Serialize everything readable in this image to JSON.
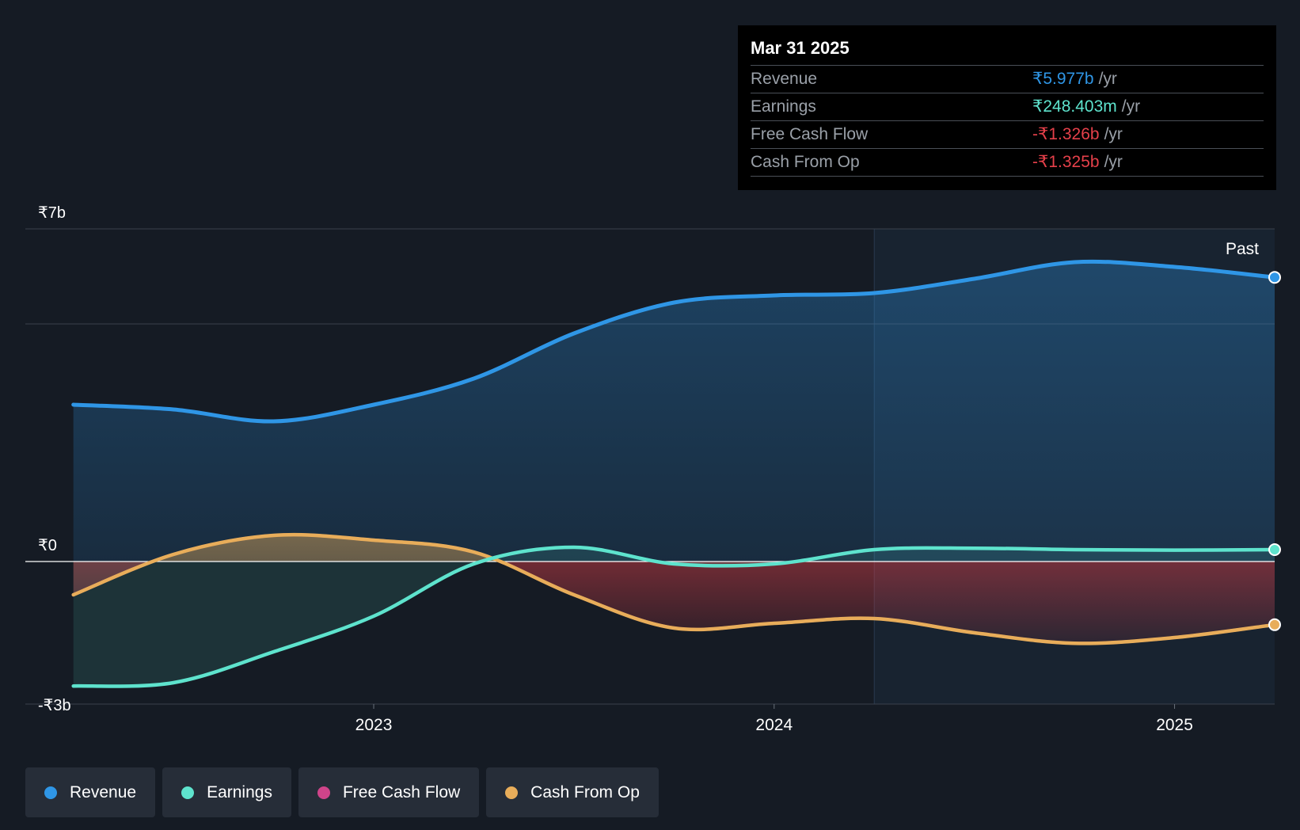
{
  "colors": {
    "revenue": "#2f96e6",
    "earnings": "#5ee3cd",
    "free_cash_flow": "#d0448a",
    "cash_from_op": "#e8ad5a",
    "negative_value": "#e5404a"
  },
  "tooltip": {
    "date": "Mar 31 2025",
    "rows": [
      {
        "label": "Revenue",
        "value": "₹5.977b",
        "unit": "/yr",
        "color": "#2f96e6"
      },
      {
        "label": "Earnings",
        "value": "₹248.403m",
        "unit": "/yr",
        "color": "#5ee3cd"
      },
      {
        "label": "Free Cash Flow",
        "value": "-₹1.326b",
        "unit": "/yr",
        "color": "#e5404a"
      },
      {
        "label": "Cash From Op",
        "value": "-₹1.325b",
        "unit": "/yr",
        "color": "#e5404a"
      }
    ]
  },
  "legend": [
    {
      "label": "Revenue",
      "color": "#2f96e6"
    },
    {
      "label": "Earnings",
      "color": "#5ee3cd"
    },
    {
      "label": "Free Cash Flow",
      "color": "#d0448a"
    },
    {
      "label": "Cash From Op",
      "color": "#e8ad5a"
    }
  ],
  "chart_data": {
    "type": "line",
    "title": "",
    "xlabel": "",
    "ylabel": "",
    "ylim": [
      -3,
      7
    ],
    "y_tick_labels": [
      {
        "value": 7,
        "label": "₹7b"
      },
      {
        "value": 0,
        "label": "₹0"
      },
      {
        "value": -3,
        "label": "-₹3b"
      }
    ],
    "x_ticks": [
      {
        "value": 2023.0,
        "label": "2023"
      },
      {
        "value": 2024.0,
        "label": "2024"
      },
      {
        "value": 2025.0,
        "label": "2025"
      }
    ],
    "xlim": [
      2022.13,
      2025.25
    ],
    "past_start": 2024.25,
    "past_label": "Past",
    "units": "₹ billions",
    "series": [
      {
        "name": "Revenue",
        "key": "revenue",
        "x": [
          2022.25,
          2022.5,
          2022.75,
          2023.0,
          2023.25,
          2023.5,
          2023.75,
          2024.0,
          2024.25,
          2024.5,
          2024.75,
          2025.0,
          2025.25
        ],
        "values": [
          3.3,
          3.2,
          2.95,
          3.3,
          3.85,
          4.8,
          5.45,
          5.6,
          5.65,
          5.95,
          6.3,
          6.2,
          5.98
        ]
      },
      {
        "name": "Earnings",
        "key": "earnings",
        "x": [
          2022.25,
          2022.5,
          2022.75,
          2023.0,
          2023.25,
          2023.5,
          2023.75,
          2024.0,
          2024.25,
          2024.5,
          2024.75,
          2025.0,
          2025.25
        ],
        "values": [
          -2.62,
          -2.55,
          -1.9,
          -1.15,
          -0.05,
          0.3,
          -0.05,
          -0.05,
          0.25,
          0.28,
          0.25,
          0.24,
          0.25
        ]
      },
      {
        "name": "Free Cash Flow",
        "key": "free_cash_flow",
        "x": [
          2022.25,
          2022.5,
          2022.75,
          2023.0,
          2023.25,
          2023.5,
          2023.75,
          2024.0,
          2024.25,
          2024.5,
          2024.75,
          2025.0,
          2025.25
        ],
        "values": [
          -0.7,
          0.15,
          0.55,
          0.45,
          0.2,
          -0.7,
          -1.4,
          -1.3,
          -1.2,
          -1.5,
          -1.72,
          -1.6,
          -1.33
        ]
      },
      {
        "name": "Cash From Op",
        "key": "cash_from_op",
        "x": [
          2022.25,
          2022.5,
          2022.75,
          2023.0,
          2023.25,
          2023.5,
          2023.75,
          2024.0,
          2024.25,
          2024.5,
          2024.75,
          2025.0,
          2025.25
        ],
        "values": [
          -0.7,
          0.15,
          0.55,
          0.45,
          0.2,
          -0.7,
          -1.4,
          -1.3,
          -1.2,
          -1.5,
          -1.72,
          -1.6,
          -1.33
        ]
      }
    ]
  }
}
